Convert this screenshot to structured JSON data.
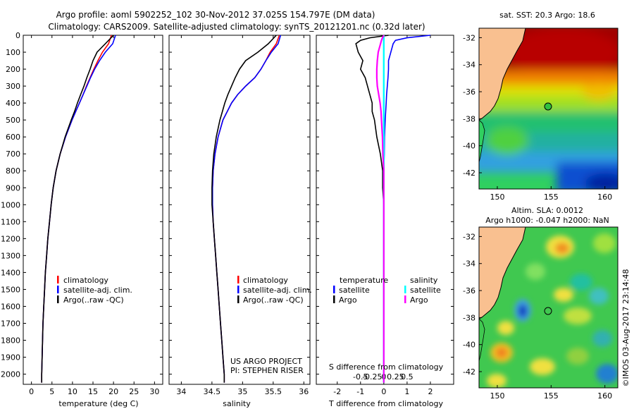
{
  "title_line1": "Argo profile: aoml 5902252_102 30-Nov-2012 37.025S 154.797E (DM data)",
  "title_line2": "Climatology: CARS2009. Satellite-adjusted climatology: synTS_20121201.nc (0.32d later)",
  "colors": {
    "climatology": "#ff0000",
    "satellite": "#0000ff",
    "argo": "#000000",
    "sat_salinity": "#00ffff",
    "argo_salinity": "#ff00ff",
    "land": "#f9c090"
  },
  "depth_ticks": [
    "0",
    "100",
    "200",
    "300",
    "400",
    "500",
    "600",
    "700",
    "800",
    "900",
    "1000",
    "1100",
    "1200",
    "1300",
    "1400",
    "1500",
    "1600",
    "1700",
    "1800",
    "1900",
    "2000"
  ],
  "chart_data": [
    {
      "type": "line",
      "id": "temperature",
      "xlabel": "temperature (deg C)",
      "ylabel": "",
      "xlim": [
        -2,
        32
      ],
      "ylim": [
        2060,
        0
      ],
      "xticks": [
        "0",
        "5",
        "10",
        "15",
        "20",
        "25",
        "30"
      ],
      "legend": [
        "climatology",
        "satellite-adj. clim.",
        "Argo(..raw -QC)"
      ],
      "depth": [
        0,
        50,
        100,
        150,
        200,
        250,
        300,
        350,
        400,
        450,
        500,
        600,
        700,
        800,
        900,
        1000,
        1100,
        1200,
        1300,
        1400,
        1500,
        1600,
        1700,
        1800,
        1900,
        2000,
        2050
      ],
      "series": [
        {
          "name": "climatology",
          "values": [
            19.5,
            18.8,
            17.3,
            16.2,
            15.2,
            14.3,
            13.4,
            12.6,
            11.7,
            10.8,
            9.9,
            8.3,
            7.0,
            6.0,
            5.3,
            4.8,
            4.4,
            4.0,
            3.7,
            3.4,
            3.2,
            3.0,
            2.8,
            2.7,
            2.6,
            2.5,
            2.5
          ]
        },
        {
          "name": "satellite-adj. clim.",
          "values": [
            20.5,
            19.8,
            18.0,
            16.6,
            15.4,
            14.4,
            13.5,
            12.6,
            11.7,
            10.8,
            9.9,
            8.3,
            7.0,
            6.0,
            5.3,
            4.8,
            4.4,
            4.0,
            3.7,
            3.4,
            3.2,
            3.0,
            2.8,
            2.7,
            2.6,
            2.5,
            2.5
          ]
        },
        {
          "name": "Argo(..raw -QC)",
          "values": [
            20.0,
            18.0,
            16.0,
            15.0,
            14.3,
            13.5,
            12.8,
            12.0,
            11.2,
            10.5,
            9.7,
            8.2,
            7.0,
            6.0,
            5.3,
            4.8,
            4.4,
            4.0,
            3.7,
            3.4,
            3.2,
            3.0,
            2.8,
            2.7,
            2.6,
            2.5,
            2.5
          ]
        }
      ]
    },
    {
      "type": "line",
      "id": "salinity",
      "xlabel": "salinity",
      "ylabel": "",
      "xlim": [
        33.8,
        36.1
      ],
      "ylim": [
        2060,
        0
      ],
      "xticks": [
        "34",
        "34.5",
        "35",
        "35.5",
        "36"
      ],
      "legend": [
        "climatology",
        "satellite-adj. clim.",
        "Argo(..raw -QC)"
      ],
      "annotation": [
        "US ARGO PROJECT",
        "PI: STEPHEN RISER"
      ],
      "depth": [
        0,
        50,
        100,
        150,
        200,
        250,
        300,
        350,
        400,
        450,
        500,
        600,
        700,
        800,
        900,
        1000,
        1100,
        1200,
        1300,
        1400,
        1500,
        1600,
        1700,
        1800,
        1900,
        2000,
        2050
      ],
      "series": [
        {
          "name": "climatology",
          "values": [
            35.6,
            35.55,
            35.45,
            35.38,
            35.3,
            35.2,
            35.05,
            34.92,
            34.82,
            34.75,
            34.68,
            34.6,
            34.55,
            34.52,
            34.51,
            34.51,
            34.52,
            34.54,
            34.56,
            34.58,
            34.6,
            34.62,
            34.64,
            34.66,
            34.68,
            34.7,
            34.7
          ]
        },
        {
          "name": "satellite-adj. clim.",
          "values": [
            35.62,
            35.58,
            35.47,
            35.38,
            35.3,
            35.2,
            35.05,
            34.92,
            34.82,
            34.75,
            34.68,
            34.6,
            34.55,
            34.52,
            34.51,
            34.51,
            34.52,
            34.54,
            34.56,
            34.58,
            34.6,
            34.62,
            34.64,
            34.66,
            34.68,
            34.7,
            34.7
          ]
        },
        {
          "name": "Argo(..raw -QC)",
          "values": [
            35.55,
            35.42,
            35.25,
            35.05,
            34.95,
            34.88,
            34.82,
            34.76,
            34.71,
            34.67,
            34.63,
            34.57,
            34.53,
            34.51,
            34.5,
            34.5,
            34.52,
            34.54,
            34.56,
            34.58,
            34.6,
            34.62,
            34.64,
            34.66,
            34.68,
            34.7,
            34.7
          ]
        }
      ]
    },
    {
      "type": "line",
      "id": "difference",
      "xlabel": "T difference from climatology",
      "xlabel_top": "S difference from climatology",
      "xlim": [
        -2.9,
        3.0
      ],
      "ylim": [
        2060,
        0
      ],
      "xticks": [
        "-2",
        "-1",
        "0",
        "1",
        "2"
      ],
      "xticks_s": [
        "-0.5",
        "-0.25",
        "0",
        "0.25",
        "0.5"
      ],
      "legend_headers": [
        "temperature",
        "salinity"
      ],
      "legend": [
        "satellite",
        "Argo",
        "satellite",
        "Argo"
      ],
      "depth": [
        0,
        15,
        30,
        50,
        100,
        150,
        200,
        250,
        300,
        350,
        400,
        450,
        500,
        600,
        700,
        800,
        900,
        1000,
        1200,
        1400,
        1600,
        1800,
        2000,
        2050
      ],
      "series": [
        {
          "name": "temperature satellite",
          "values": [
            2.0,
            1.0,
            0.5,
            0.4,
            0.3,
            0.2,
            0.2,
            0.18,
            0.15,
            0.12,
            0.1,
            0.08,
            0.06,
            0.03,
            0.02,
            0.0,
            0.0,
            0.0,
            0.0,
            0.0,
            0.0,
            0.0,
            0.0,
            0.0
          ]
        },
        {
          "name": "temperature Argo",
          "values": [
            0.2,
            -0.6,
            -1.0,
            -1.2,
            -1.1,
            -0.9,
            -1.0,
            -0.8,
            -0.7,
            -0.6,
            -0.5,
            -0.5,
            -0.4,
            -0.3,
            -0.15,
            -0.05,
            -0.05,
            0.0,
            0.0,
            0.0,
            0.0,
            0.0,
            0.0,
            0.0
          ]
        },
        {
          "name": "salinity satellite",
          "values": [
            0.0,
            0.0,
            0.0,
            0.0,
            0.0,
            0.0,
            0.0,
            0.0,
            0.0,
            0.0,
            0.0,
            0.0,
            0.0,
            0.0,
            0.0,
            0.0,
            0.0,
            0.0,
            0.0,
            0.0,
            0.0,
            0.0,
            0.0,
            0.0
          ]
        },
        {
          "name": "salinity Argo",
          "values": [
            0.0,
            -0.03,
            -0.05,
            -0.07,
            -0.12,
            -0.14,
            -0.15,
            -0.15,
            -0.14,
            -0.11,
            -0.08,
            -0.06,
            -0.05,
            -0.03,
            -0.02,
            0.0,
            0.0,
            0.0,
            0.0,
            0.0,
            0.0,
            0.0,
            0.0,
            0.0
          ]
        }
      ]
    },
    {
      "type": "heatmap",
      "id": "sst_map",
      "title": "sat. SST: 20.3 Argo: 18.6",
      "xticks": [
        "150",
        "155",
        "160"
      ],
      "yticks": [
        "-32",
        "-34",
        "-36",
        "-38",
        "-40",
        "-42"
      ],
      "xlim": [
        148.3,
        161.2
      ],
      "ylim": [
        -43.2,
        -31.3
      ],
      "argo_position": {
        "lon": 154.797,
        "lat": -37.025
      }
    },
    {
      "type": "heatmap",
      "id": "sla_map",
      "title": "Altim. SLA: 0.0012",
      "subtitle": "Argo h1000: -0.047 h2000: NaN",
      "xticks": [
        "150",
        "155",
        "160"
      ],
      "yticks": [
        "-32",
        "-34",
        "-36",
        "-38",
        "-40",
        "-42"
      ],
      "xlim": [
        148.3,
        161.2
      ],
      "ylim": [
        -43.2,
        -31.3
      ],
      "argo_position": {
        "lon": 154.797,
        "lat": -37.025
      }
    }
  ],
  "footer": "©IMOS 03-Aug-2017 23:14:48"
}
